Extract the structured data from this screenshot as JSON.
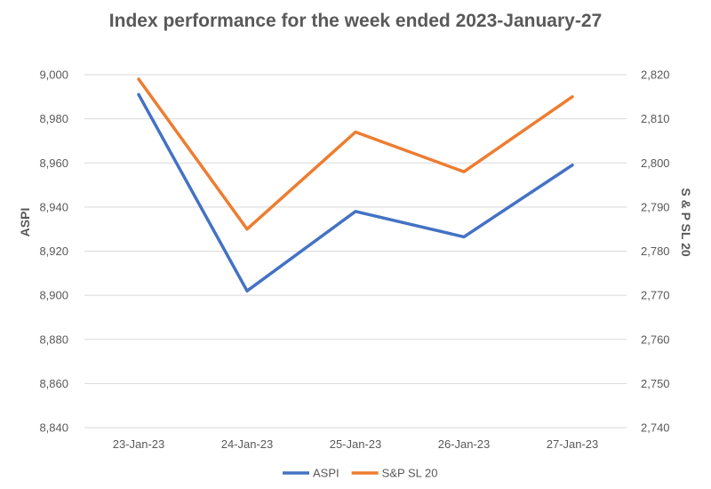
{
  "chart_data": {
    "type": "line",
    "title": "Index performance for the week ended 2023-January-27",
    "categories": [
      "23-Jan-23",
      "24-Jan-23",
      "25-Jan-23",
      "26-Jan-23",
      "27-Jan-23"
    ],
    "y_left": {
      "label": "ASPI",
      "range": [
        8840,
        9000
      ],
      "ticks": [
        "8,840",
        "8,860",
        "8,880",
        "8,900",
        "8,920",
        "8,940",
        "8,960",
        "8,980",
        "9,000"
      ]
    },
    "y_right": {
      "label": "S & P SL 20",
      "range": [
        2740,
        2820
      ],
      "ticks": [
        "2,740",
        "2,750",
        "2,760",
        "2,770",
        "2,780",
        "2,790",
        "2,800",
        "2,810",
        "2,820"
      ]
    },
    "series": [
      {
        "name": "ASPI",
        "axis": "left",
        "color": "#4472c4",
        "values": [
          8991,
          8902,
          8938,
          8926.5,
          8959
        ]
      },
      {
        "name": "S&P SL 20",
        "axis": "right",
        "color": "#ed7d31",
        "values": [
          2819,
          2785,
          2807,
          2798,
          2815
        ]
      }
    ],
    "legend_position": "bottom",
    "grid": true
  }
}
